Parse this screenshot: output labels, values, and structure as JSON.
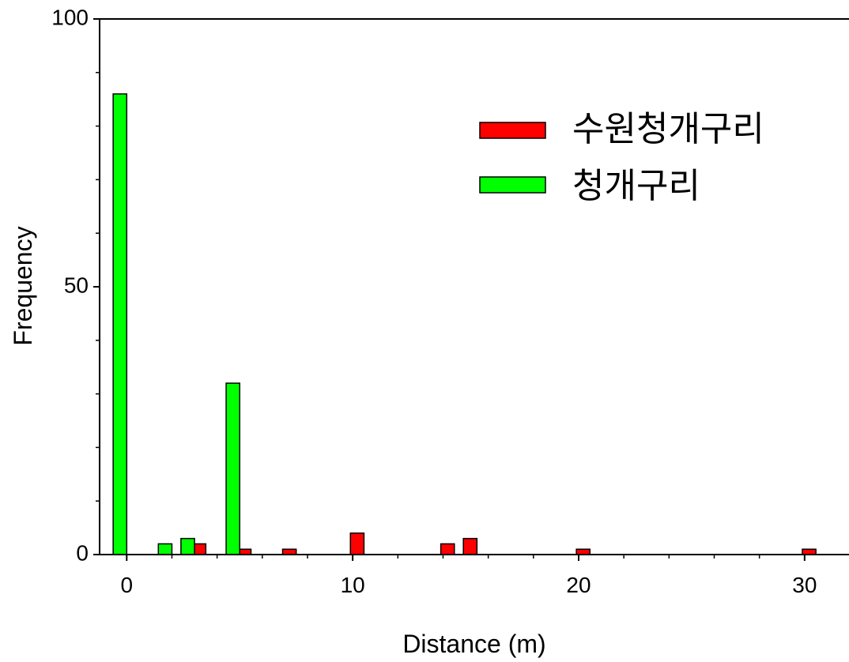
{
  "chart_data": {
    "type": "bar",
    "xlabel": "Distance (m)",
    "ylabel": "Frequency",
    "xlim": [
      -1.2,
      32
    ],
    "ylim": [
      0,
      100
    ],
    "x_ticks": [
      0,
      10,
      20,
      30
    ],
    "y_ticks": [
      0,
      50,
      100
    ],
    "grid": false,
    "legend_position": "top-right",
    "series": [
      {
        "name": "수원청개구리",
        "color": "#ff0000",
        "points": [
          {
            "x": 3.2,
            "y": 2
          },
          {
            "x": 5.2,
            "y": 1
          },
          {
            "x": 7.2,
            "y": 1
          },
          {
            "x": 10.2,
            "y": 4
          },
          {
            "x": 14.2,
            "y": 2
          },
          {
            "x": 15.2,
            "y": 3
          },
          {
            "x": 20.2,
            "y": 1
          },
          {
            "x": 30.2,
            "y": 1
          }
        ]
      },
      {
        "name": "청개구리",
        "color": "#00ff00",
        "points": [
          {
            "x": -0.3,
            "y": 86
          },
          {
            "x": 1.7,
            "y": 2
          },
          {
            "x": 2.7,
            "y": 3
          },
          {
            "x": 4.7,
            "y": 32
          }
        ]
      }
    ]
  }
}
